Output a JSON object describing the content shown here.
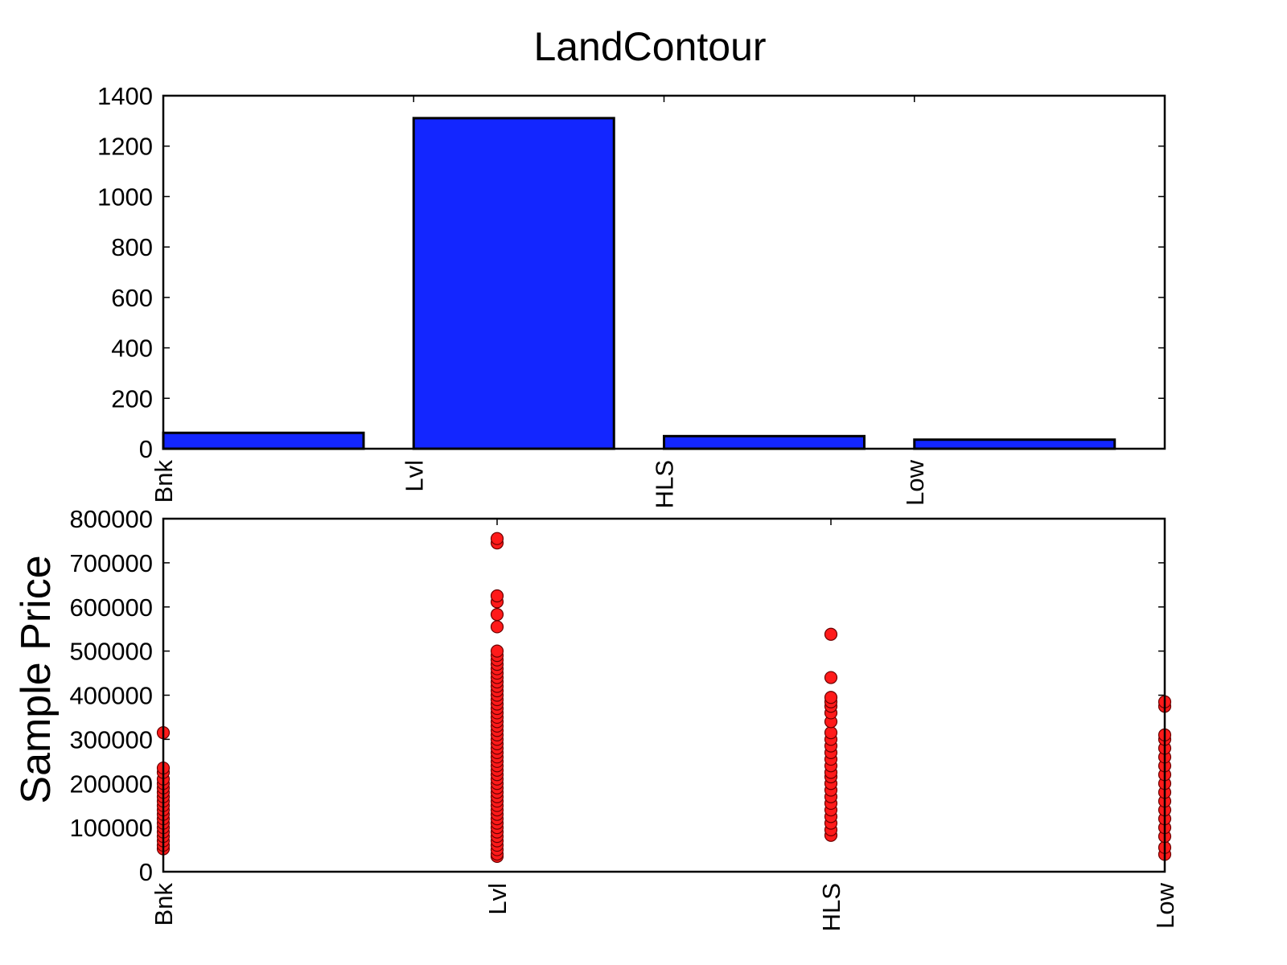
{
  "title": "LandContour",
  "colors": {
    "bar_fill": "#1326ff",
    "point_fill": "#ff1a1a",
    "edge": "#000000"
  },
  "chart_data": [
    {
      "type": "bar",
      "title": "LandContour",
      "categories": [
        "Bnk",
        "Lvl",
        "HLS",
        "Low"
      ],
      "values": [
        63,
        1311,
        50,
        36
      ],
      "ylim": [
        0,
        1400
      ],
      "yticks": [
        0,
        200,
        400,
        600,
        800,
        1000,
        1200,
        1400
      ],
      "xlabel": "",
      "ylabel": "",
      "grid": false
    },
    {
      "type": "scatter",
      "categories": [
        "Bnk",
        "Lvl",
        "HLS",
        "Low"
      ],
      "ylabel": "Sample Price",
      "ylim": [
        0,
        800000
      ],
      "yticks": [
        0,
        100000,
        200000,
        300000,
        400000,
        500000,
        600000,
        700000,
        800000
      ],
      "grid": false,
      "series": [
        {
          "category": "Bnk",
          "values": [
            52000,
            60000,
            70000,
            80000,
            90000,
            100000,
            110000,
            120000,
            130000,
            140000,
            150000,
            160000,
            170000,
            180000,
            190000,
            200000,
            210000,
            225000,
            235000,
            315000
          ]
        },
        {
          "category": "Lvl",
          "values": [
            34900,
            40000,
            50000,
            60000,
            70000,
            80000,
            90000,
            100000,
            110000,
            120000,
            130000,
            140000,
            150000,
            160000,
            170000,
            180000,
            190000,
            200000,
            210000,
            220000,
            230000,
            240000,
            250000,
            260000,
            270000,
            280000,
            290000,
            300000,
            310000,
            320000,
            330000,
            340000,
            350000,
            360000,
            370000,
            380000,
            390000,
            400000,
            410000,
            420000,
            430000,
            440000,
            450000,
            460000,
            470000,
            480000,
            490000,
            500000,
            555000,
            582900,
            611657,
            625000,
            745000,
            755000
          ]
        },
        {
          "category": "HLS",
          "values": [
            82500,
            95000,
            110000,
            125000,
            140000,
            155000,
            170000,
            185000,
            200000,
            215000,
            225000,
            240000,
            255000,
            270000,
            285000,
            300000,
            315000,
            340000,
            360000,
            375000,
            385000,
            395000,
            440000,
            538000
          ]
        },
        {
          "category": "Low",
          "values": [
            39300,
            55000,
            80000,
            100000,
            120000,
            140000,
            160000,
            180000,
            200000,
            220000,
            240000,
            260000,
            280000,
            300000,
            310000,
            375000,
            385000
          ]
        }
      ]
    }
  ]
}
